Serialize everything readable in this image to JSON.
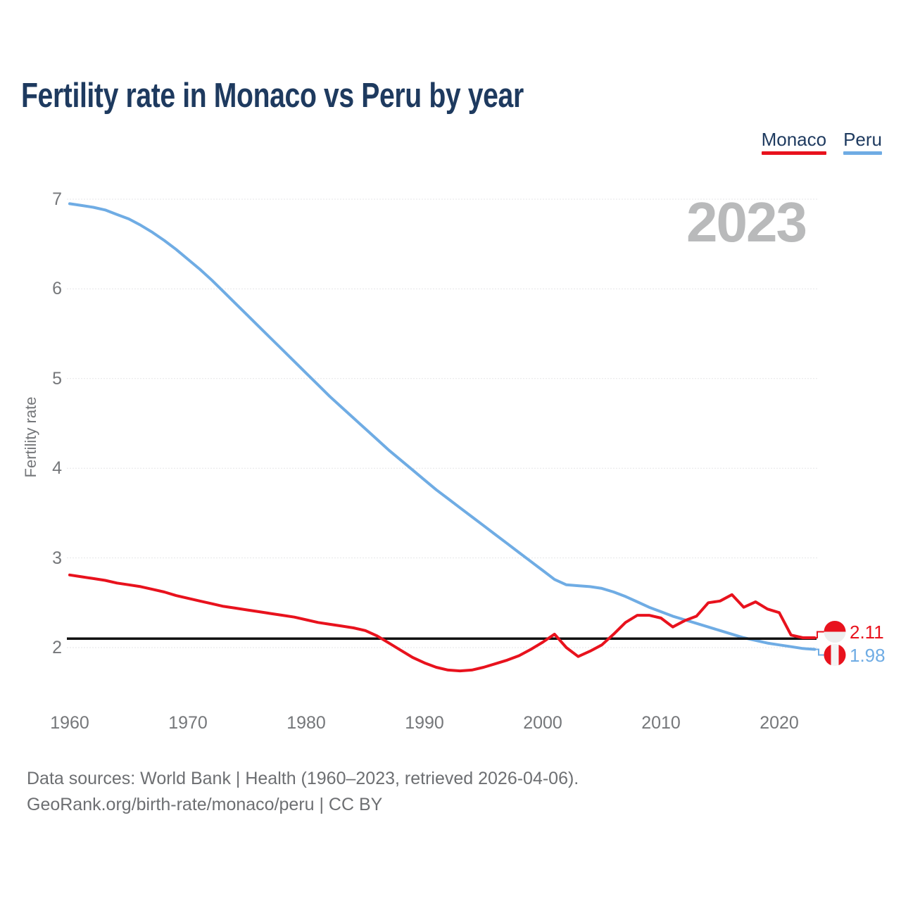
{
  "title": "Fertility rate in Monaco vs Peru by year",
  "watermark_year": "2023",
  "colors": {
    "title": "#1e3a5f",
    "text_gray": "#75777a",
    "watermark": "#b9babb",
    "grid": "#e5e6e7"
  },
  "footer": {
    "line1": "Data sources: World Bank | Health (1960–2023, retrieved 2026-04-06).",
    "line2": "GeoRank.org/birth-rate/monaco/peru | CC BY"
  },
  "chart_data": {
    "type": "line",
    "title": "Fertility rate in Monaco vs Peru by year",
    "xlabel": "",
    "ylabel": "Fertility rate",
    "x_range": [
      1960,
      2023
    ],
    "ylim": [
      2,
      7
    ],
    "xticks": [
      1960,
      1970,
      1980,
      1990,
      2000,
      2010,
      2020
    ],
    "yticks": [
      2,
      3,
      4,
      5,
      6,
      7
    ],
    "grid": true,
    "legend_position": "top-right",
    "reference_line": {
      "value": 2.1,
      "color": "#111111"
    },
    "years": [
      1960,
      1961,
      1962,
      1963,
      1964,
      1965,
      1966,
      1967,
      1968,
      1969,
      1970,
      1971,
      1972,
      1973,
      1974,
      1975,
      1976,
      1977,
      1978,
      1979,
      1980,
      1981,
      1982,
      1983,
      1984,
      1985,
      1986,
      1987,
      1988,
      1989,
      1990,
      1991,
      1992,
      1993,
      1994,
      1995,
      1996,
      1997,
      1998,
      1999,
      2000,
      2001,
      2002,
      2003,
      2004,
      2005,
      2006,
      2007,
      2008,
      2009,
      2010,
      2011,
      2012,
      2013,
      2014,
      2015,
      2016,
      2017,
      2018,
      2019,
      2020,
      2021,
      2022,
      2023
    ],
    "series": [
      {
        "name": "Monaco",
        "color": "#e8121d",
        "final_label": "2.11",
        "flag": {
          "type": "monaco",
          "top": "#e8121d",
          "bottom": "#ededed"
        },
        "values": [
          2.81,
          2.79,
          2.77,
          2.75,
          2.72,
          2.7,
          2.68,
          2.65,
          2.62,
          2.58,
          2.55,
          2.52,
          2.49,
          2.46,
          2.44,
          2.42,
          2.4,
          2.38,
          2.36,
          2.34,
          2.31,
          2.28,
          2.26,
          2.24,
          2.22,
          2.19,
          2.13,
          2.05,
          1.97,
          1.89,
          1.83,
          1.78,
          1.75,
          1.74,
          1.75,
          1.78,
          1.82,
          1.86,
          1.91,
          1.98,
          2.06,
          2.15,
          2.0,
          1.9,
          1.96,
          2.03,
          2.15,
          2.28,
          2.36,
          2.36,
          2.33,
          2.23,
          2.3,
          2.35,
          2.5,
          2.52,
          2.59,
          2.45,
          2.51,
          2.43,
          2.39,
          2.14,
          2.11,
          2.11
        ]
      },
      {
        "name": "Peru",
        "color": "#6face4",
        "final_label": "1.98",
        "flag": {
          "type": "peru",
          "sides": "#e8121d",
          "middle": "#f4f4f4"
        },
        "values": [
          6.95,
          6.93,
          6.91,
          6.88,
          6.83,
          6.78,
          6.71,
          6.63,
          6.54,
          6.44,
          6.33,
          6.22,
          6.1,
          5.97,
          5.84,
          5.71,
          5.58,
          5.45,
          5.32,
          5.19,
          5.06,
          4.93,
          4.8,
          4.68,
          4.56,
          4.44,
          4.32,
          4.2,
          4.09,
          3.98,
          3.87,
          3.76,
          3.66,
          3.56,
          3.46,
          3.36,
          3.26,
          3.16,
          3.06,
          2.96,
          2.86,
          2.76,
          2.7,
          2.69,
          2.68,
          2.66,
          2.62,
          2.57,
          2.51,
          2.45,
          2.4,
          2.35,
          2.31,
          2.27,
          2.23,
          2.19,
          2.15,
          2.11,
          2.08,
          2.05,
          2.03,
          2.01,
          1.99,
          1.98
        ]
      }
    ]
  }
}
